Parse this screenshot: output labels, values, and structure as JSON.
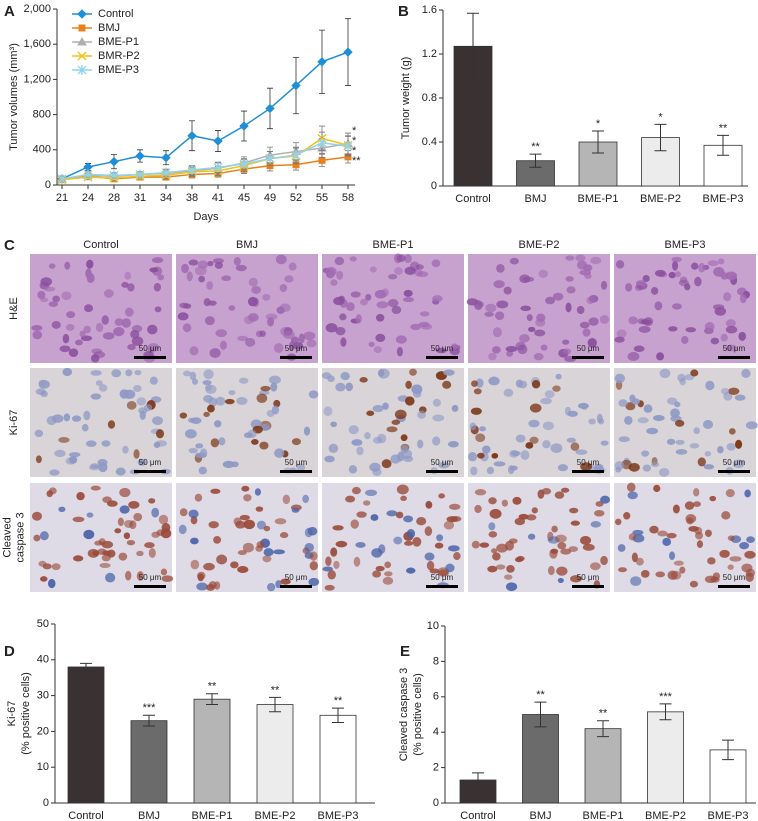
{
  "chart_data": [
    {
      "type": "line",
      "panel": "A",
      "x_label": "Days",
      "y_label": "Tumor volumes (mm³)",
      "categories": [
        "21",
        "24",
        "28",
        "31",
        "34",
        "38",
        "41",
        "45",
        "49",
        "52",
        "55",
        "58"
      ],
      "ylim": [
        0,
        2000
      ],
      "yticks": [
        0,
        400,
        800,
        {
          "value": 1200,
          "label": "1,200"
        },
        {
          "value": 1600,
          "label": "1,600"
        },
        {
          "value": 2000,
          "label": "2,000"
        }
      ],
      "series": [
        {
          "name": "Control",
          "color": "#1f8fd6",
          "marker": "diamond",
          "values": [
            70,
            205,
            265,
            330,
            310,
            560,
            500,
            670,
            870,
            1130,
            1400,
            1510
          ],
          "errors": [
            30,
            40,
            80,
            70,
            80,
            170,
            120,
            170,
            230,
            320,
            360,
            380
          ]
        },
        {
          "name": "BMJ",
          "color": "#e8821e",
          "marker": "square",
          "values": [
            60,
            100,
            70,
            90,
            90,
            120,
            130,
            180,
            220,
            230,
            280,
            320
          ],
          "errors": [
            20,
            30,
            20,
            30,
            30,
            40,
            40,
            50,
            60,
            60,
            70,
            70
          ]
        },
        {
          "name": "BME-P1",
          "color": "#b0b0b0",
          "marker": "triangle",
          "values": [
            70,
            110,
            100,
            120,
            130,
            160,
            190,
            250,
            340,
            380,
            420,
            470
          ],
          "errors": [
            20,
            30,
            30,
            30,
            40,
            50,
            60,
            70,
            90,
            100,
            110,
            120
          ]
        },
        {
          "name": "BMR-P2",
          "color": "#f0c419",
          "marker": "x",
          "values": [
            60,
            90,
            80,
            100,
            110,
            150,
            160,
            220,
            300,
            330,
            530,
            450
          ],
          "errors": [
            20,
            30,
            30,
            30,
            40,
            50,
            50,
            70,
            80,
            90,
            140,
            110
          ]
        },
        {
          "name": "BME-P3",
          "color": "#8fd3ef",
          "marker": "star",
          "values": [
            70,
            120,
            110,
            120,
            140,
            170,
            200,
            240,
            300,
            340,
            480,
            440
          ],
          "errors": [
            20,
            30,
            30,
            30,
            40,
            50,
            60,
            60,
            80,
            90,
            120,
            110
          ]
        }
      ],
      "annotations": [
        "*",
        "*",
        "*",
        "**"
      ]
    },
    {
      "type": "bar",
      "panel": "B",
      "y_label": "Tumor weight (g)",
      "categories": [
        "Control",
        "BMJ",
        "BME-P1",
        "BME-P2",
        "BME-P3"
      ],
      "values": [
        1.27,
        0.23,
        0.4,
        0.44,
        0.37
      ],
      "errors": [
        0.3,
        0.06,
        0.1,
        0.12,
        0.09
      ],
      "colors": [
        "#3a3132",
        "#6b6b6b",
        "#b5b5b5",
        "#ececec",
        "#ffffff"
      ],
      "significance": [
        null,
        "**",
        "*",
        "*",
        "**"
      ],
      "ylim": [
        0,
        1.6
      ],
      "yticks": [
        0,
        0.4,
        0.8,
        1.2,
        1.6
      ]
    },
    {
      "type": "bar",
      "panel": "D",
      "y_label": [
        "Ki-67",
        "(% positive cells)"
      ],
      "categories": [
        "Control",
        "BMJ",
        "BME-P1",
        "BME-P2",
        "BME-P3"
      ],
      "values": [
        38,
        23,
        29,
        27.5,
        24.5
      ],
      "errors": [
        1,
        1.5,
        1.5,
        2,
        2
      ],
      "colors": [
        "#3a3132",
        "#6b6b6b",
        "#b5b5b5",
        "#ececec",
        "#ffffff"
      ],
      "significance": [
        null,
        "***",
        "**",
        "**",
        "**"
      ],
      "ylim": [
        0,
        50
      ],
      "yticks": [
        0,
        10,
        20,
        30,
        40,
        50
      ]
    },
    {
      "type": "bar",
      "panel": "E",
      "y_label": [
        "Cleaved caspase 3",
        "(% positive cells)"
      ],
      "categories": [
        "Control",
        "BMJ",
        "BME-P1",
        "BME-P2",
        "BME-P3"
      ],
      "values": [
        1.3,
        5.0,
        4.2,
        5.15,
        3.0
      ],
      "errors": [
        0.4,
        0.7,
        0.45,
        0.45,
        0.55
      ],
      "colors": [
        "#3a3132",
        "#6b6b6b",
        "#b5b5b5",
        "#ececec",
        "#ffffff"
      ],
      "significance": [
        null,
        "**",
        "**",
        "***",
        null
      ],
      "ylim": [
        0,
        10
      ],
      "yticks": [
        0,
        2,
        4,
        6,
        8,
        10
      ]
    }
  ],
  "image_panel": {
    "panel": "C",
    "columns": [
      "Control",
      "BMJ",
      "BME-P1",
      "BME-P2",
      "BME-P3"
    ],
    "rows": [
      [
        "H&E"
      ],
      [
        "Ki-67"
      ],
      [
        "Cleaved",
        "caspase 3"
      ]
    ],
    "scale_bar": "50 μm"
  }
}
